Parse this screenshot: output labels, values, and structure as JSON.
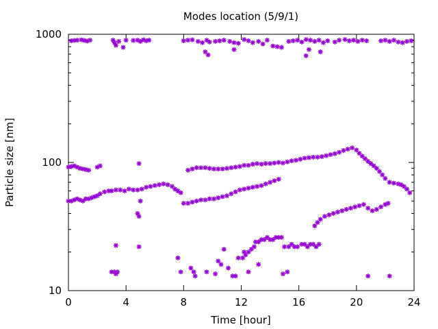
{
  "chart_data": {
    "type": "scatter",
    "title": "Modes location (5/9/1)",
    "xlabel": "Time [hour]",
    "ylabel": "Particle size [nm]",
    "xlim": [
      0,
      24
    ],
    "ylim": [
      10,
      1000
    ],
    "yscale": "log",
    "xticks": [
      0,
      4,
      8,
      12,
      16,
      20,
      24
    ],
    "xtick_labels": [
      "0",
      "4",
      "8",
      "12",
      "16",
      "20",
      "24"
    ],
    "yticks": [
      10,
      100,
      1000
    ],
    "ytick_labels": [
      "10",
      "100",
      "1000"
    ],
    "grid": false,
    "legend": "none",
    "marker_color": "#9400D3",
    "series": [
      {
        "values_desc": "upper mode",
        "x": [
          0.2,
          0.4,
          0.6,
          0.9,
          1.1,
          1.3,
          1.5,
          3.1,
          3.2,
          3.3,
          3.5,
          3.8,
          4.0,
          4.5,
          4.8,
          5.0,
          5.2,
          5.4,
          5.6,
          8.0,
          8.3,
          8.6,
          9.0,
          9.3,
          9.6,
          9.8,
          10.2,
          10.5,
          10.8,
          11.2,
          11.5,
          11.8,
          12.2,
          12.5,
          12.8,
          13.2,
          13.5,
          13.8,
          14.2,
          14.5,
          14.8,
          15.3,
          15.6,
          15.9,
          16.2,
          16.5,
          16.8,
          17.1,
          17.4,
          17.7,
          18.0,
          18.5,
          18.8,
          19.2,
          19.5,
          19.8,
          20.1,
          20.4,
          20.7,
          21.7,
          22.0,
          22.3,
          22.6,
          22.9,
          23.2,
          23.5,
          23.8,
          9.5,
          9.7,
          11.5,
          16.5,
          16.7,
          17.5
        ],
        "y": [
          890,
          895,
          900,
          905,
          895,
          885,
          900,
          900,
          860,
          820,
          880,
          790,
          900,
          895,
          900,
          880,
          905,
          890,
          900,
          890,
          900,
          905,
          880,
          860,
          900,
          870,
          880,
          890,
          900,
          880,
          860,
          850,
          910,
          890,
          860,
          880,
          840,
          900,
          810,
          800,
          790,
          880,
          890,
          900,
          870,
          910,
          900,
          880,
          900,
          860,
          890,
          870,
          900,
          910,
          890,
          900,
          880,
          900,
          890,
          890,
          900,
          880,
          900,
          870,
          860,
          880,
          890,
          730,
          690,
          760,
          680,
          760,
          730
        ]
      },
      {
        "values_desc": "middle mode",
        "x": [
          0.0,
          0.2,
          0.4,
          0.6,
          0.8,
          1.0,
          1.2,
          1.4,
          2.0,
          2.2,
          4.9,
          8.3,
          8.6,
          8.9,
          9.2,
          9.5,
          9.8,
          10.1,
          10.4,
          10.7,
          11.0,
          11.3,
          11.6,
          11.9,
          12.2,
          12.5,
          12.8,
          13.1,
          13.4,
          13.7,
          14.0,
          14.3,
          14.6,
          14.9,
          15.2,
          15.5,
          15.8,
          16.1,
          16.4,
          16.7,
          17.0,
          17.3,
          17.6,
          17.9,
          18.2,
          18.5,
          18.8,
          19.1,
          19.4,
          19.7,
          20.0,
          20.2,
          20.4,
          20.6,
          20.8,
          21.0,
          21.2,
          21.4,
          21.6,
          21.8,
          22.0,
          22.3,
          22.6,
          22.9,
          23.1,
          23.3,
          23.5,
          23.7
        ],
        "y": [
          92,
          93,
          94,
          92,
          90,
          89,
          88,
          87,
          92,
          94,
          98,
          87,
          89,
          91,
          91,
          91,
          90,
          89,
          89,
          89,
          90,
          91,
          92,
          93,
          95,
          95,
          97,
          98,
          97,
          98,
          98,
          99,
          100,
          99,
          101,
          103,
          104,
          106,
          108,
          109,
          110,
          110,
          111,
          113,
          115,
          117,
          120,
          124,
          127,
          130,
          125,
          118,
          112,
          107,
          102,
          98,
          94,
          90,
          85,
          80,
          75,
          70,
          69,
          68,
          67,
          65,
          62,
          58
        ]
      },
      {
        "values_desc": "lower mode",
        "x": [
          0.0,
          0.2,
          0.4,
          0.6,
          0.8,
          1.0,
          1.2,
          1.4,
          1.6,
          1.8,
          2.0,
          2.2,
          2.5,
          2.8,
          3.0,
          3.3,
          3.6,
          3.9,
          4.2,
          4.5,
          4.8,
          5.1,
          5.4,
          5.7,
          6.0,
          6.3,
          6.6,
          6.9,
          7.2,
          7.4,
          7.6,
          7.8,
          8.0,
          8.3,
          8.6,
          8.9,
          9.2,
          9.5,
          9.8,
          10.1,
          10.4,
          10.7,
          11.0,
          11.3,
          11.6,
          11.9,
          12.2,
          12.5,
          12.8,
          13.1,
          13.4,
          13.7,
          14.0,
          14.3,
          14.6,
          4.8,
          5.0,
          4.9,
          17.1,
          17.3,
          17.5,
          17.8,
          18.1,
          18.4,
          18.7,
          19.0,
          19.3,
          19.6,
          19.9,
          20.2,
          20.5,
          20.8,
          21.1,
          21.4,
          21.7,
          22.0,
          22.2
        ],
        "y": [
          50,
          50,
          51,
          52,
          51,
          50,
          52,
          52,
          53,
          54,
          55,
          57,
          59,
          60,
          60,
          61,
          61,
          60,
          62,
          61,
          61,
          62,
          64,
          65,
          66,
          67,
          68,
          67,
          65,
          62,
          60,
          58,
          48,
          48,
          49,
          50,
          51,
          51,
          52,
          52,
          53,
          54,
          55,
          57,
          59,
          61,
          62,
          63,
          64,
          65,
          66,
          68,
          70,
          72,
          74,
          40,
          50,
          38,
          32,
          34,
          36,
          38,
          39,
          40,
          41,
          42,
          43,
          44,
          45,
          46,
          47,
          44,
          42,
          43,
          45,
          47,
          48
        ]
      },
      {
        "values_desc": "lowest mode",
        "x": [
          3.0,
          3.2,
          3.3,
          3.4,
          3.3,
          4.9,
          7.6,
          7.8,
          8.5,
          8.7,
          8.8,
          9.6,
          10.2,
          10.4,
          10.6,
          10.8,
          11.1,
          11.4,
          11.6,
          11.8,
          12.1,
          12.3,
          12.5,
          12.7,
          12.9,
          13.0,
          13.2,
          13.4,
          13.6,
          13.8,
          14.0,
          14.2,
          14.4,
          14.6,
          14.8,
          15.0,
          15.3,
          15.5,
          15.7,
          15.9,
          16.2,
          16.4,
          16.6,
          16.8,
          17.0,
          17.2,
          17.4,
          12.2,
          12.5,
          13.2,
          14.9,
          15.2,
          20.8,
          22.3
        ],
        "y": [
          14,
          14,
          13.5,
          14,
          22.5,
          22,
          18,
          14,
          15,
          14,
          13,
          14,
          13.5,
          17,
          16,
          21,
          15,
          13,
          13,
          18,
          18,
          19,
          20,
          21,
          22,
          24,
          24,
          25,
          25,
          26,
          25,
          25,
          26,
          26,
          26,
          22,
          22,
          23,
          22,
          22,
          23,
          23,
          22,
          23,
          23,
          22,
          23,
          20,
          14,
          16,
          13.5,
          14,
          13,
          13
        ]
      }
    ]
  }
}
